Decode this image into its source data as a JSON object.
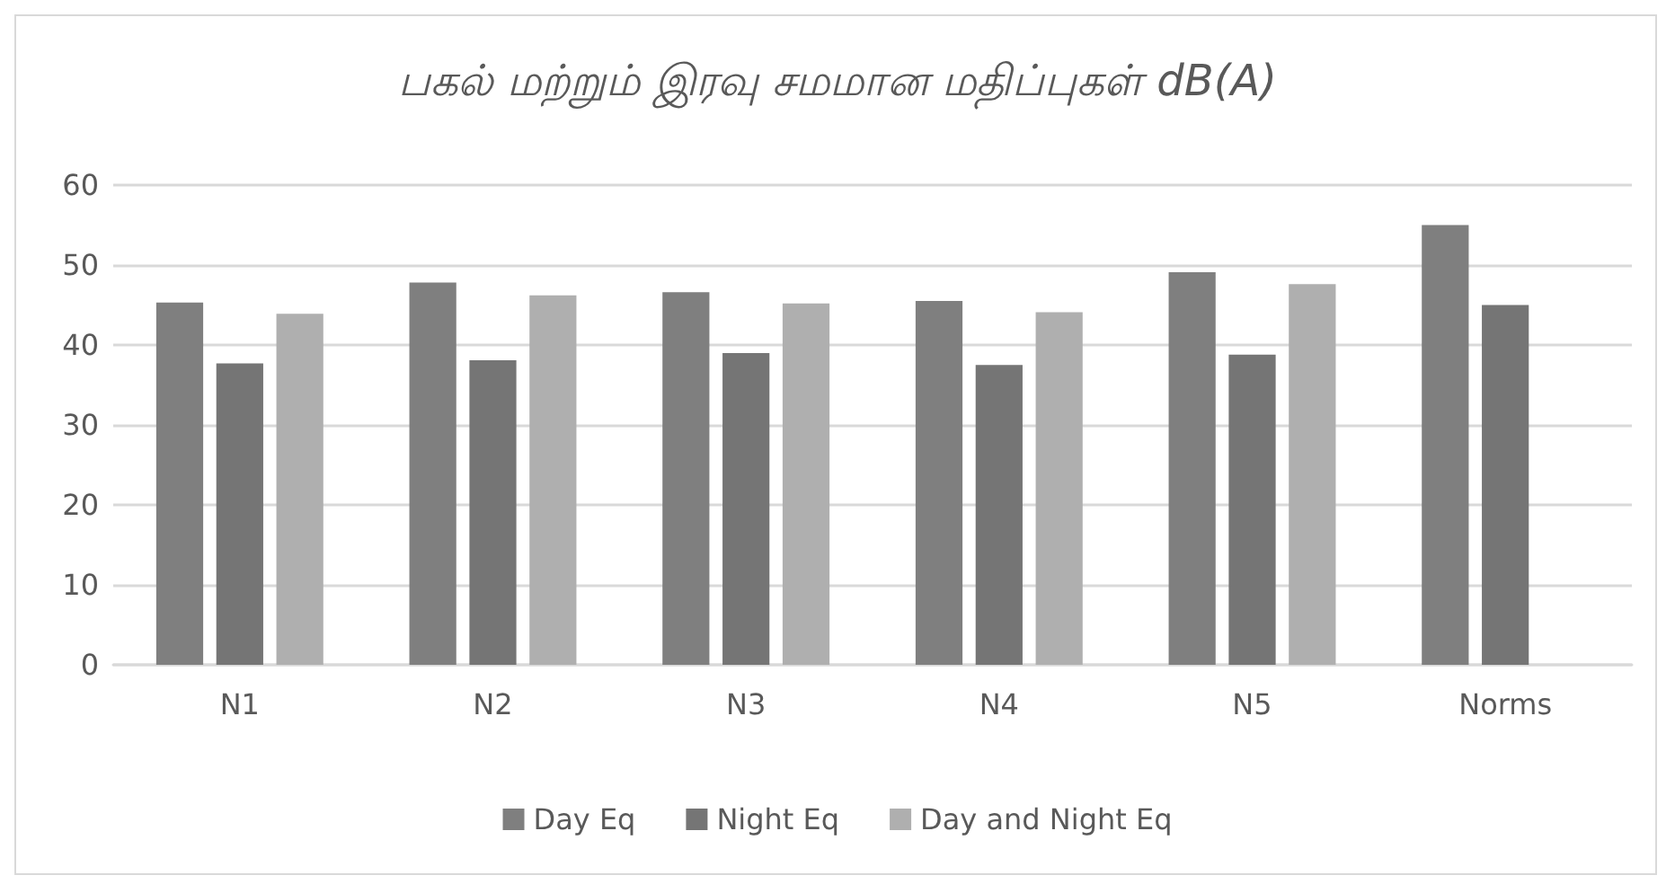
{
  "chart_data": {
    "type": "bar",
    "title": "பகல் மற்றும் இரவு சமமான மதிப்புகள் dB(A)",
    "categories": [
      "N1",
      "N2",
      "N3",
      "N4",
      "N5",
      "Norms"
    ],
    "series": [
      {
        "name": "Day Eq",
        "color": "#7f7f7f",
        "values": [
          45.3,
          47.8,
          46.6,
          45.5,
          49.1,
          55.0
        ]
      },
      {
        "name": "Night Eq",
        "color": "#757575",
        "values": [
          37.7,
          38.1,
          39.0,
          37.5,
          38.8,
          45.0
        ]
      },
      {
        "name": "Day and Night Eq",
        "color": "#afafaf",
        "values": [
          43.9,
          46.2,
          45.2,
          44.1,
          47.6,
          null
        ]
      }
    ],
    "ylim": [
      0,
      60
    ],
    "yticks": [
      0,
      10,
      20,
      30,
      40,
      50,
      60
    ],
    "grid": "y",
    "legend": "bottom"
  }
}
